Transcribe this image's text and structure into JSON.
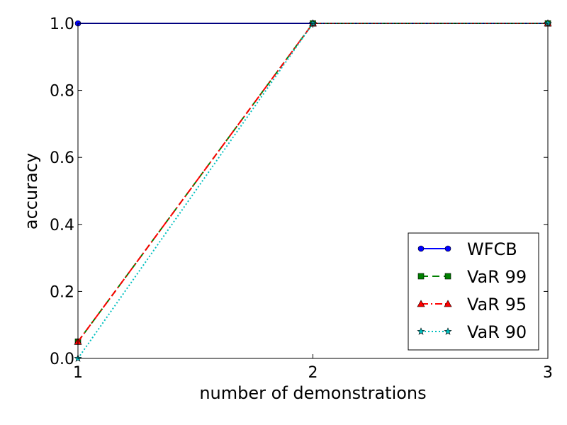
{
  "chart_data": {
    "type": "line",
    "title": "",
    "xlabel": "number of demonstrations",
    "ylabel": "accuracy",
    "xlim": [
      1,
      3
    ],
    "ylim": [
      0.0,
      1.0
    ],
    "x": [
      1,
      2,
      3
    ],
    "xticks": [
      "1",
      "2",
      "3"
    ],
    "yticks": [
      "0.0",
      "0.2",
      "0.4",
      "0.6",
      "0.8",
      "1.0"
    ],
    "legend_position": "bottom-right",
    "series": [
      {
        "name": "WFCB",
        "values": [
          1.0,
          1.0,
          1.0
        ],
        "color": "#0000ff",
        "linestyle": "solid",
        "marker": "circle"
      },
      {
        "name": "VaR 99",
        "values": [
          0.05,
          1.0,
          1.0
        ],
        "color": "#008000",
        "linestyle": "dashed",
        "marker": "square"
      },
      {
        "name": "VaR 95",
        "values": [
          0.05,
          1.0,
          1.0
        ],
        "color": "#ff0000",
        "linestyle": "dashdot",
        "marker": "triangle"
      },
      {
        "name": "VaR 90",
        "values": [
          0.0,
          1.0,
          1.0
        ],
        "color": "#00bfbf",
        "linestyle": "dotted",
        "marker": "star"
      }
    ]
  }
}
